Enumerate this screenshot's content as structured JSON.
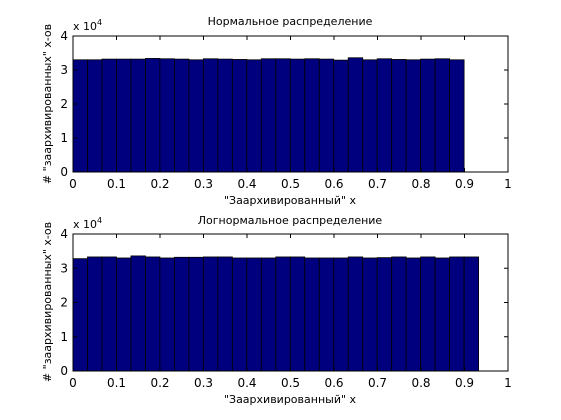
{
  "chart_data": [
    {
      "type": "bar",
      "title": "Нормальное распределение",
      "xlabel": "\"Заархивированный\" x",
      "ylabel": "# \"заархивированных\" x-ов",
      "y_exponent_label": "x 10",
      "y_exponent_power": "4",
      "xlim": [
        0,
        1
      ],
      "ylim": [
        0,
        4
      ],
      "xticks": [
        "0",
        "0.1",
        "0.2",
        "0.3",
        "0.4",
        "0.5",
        "0.6",
        "0.7",
        "0.8",
        "0.9",
        "1"
      ],
      "yticks": [
        "0",
        "1",
        "2",
        "3",
        "4"
      ],
      "bar_color": "#00007f",
      "bin_width": 0.0333,
      "values": [
        3.3,
        3.3,
        3.32,
        3.32,
        3.32,
        3.34,
        3.33,
        3.32,
        3.3,
        3.33,
        3.32,
        3.31,
        3.3,
        3.33,
        3.33,
        3.32,
        3.33,
        3.32,
        3.29,
        3.36,
        3.3,
        3.33,
        3.31,
        3.3,
        3.32,
        3.33,
        3.3
      ]
    },
    {
      "type": "bar",
      "title": "Логнормальное распределение",
      "xlabel": "\"Заархивированный\" x",
      "ylabel": "# \"заархивированных\" x-ов",
      "y_exponent_label": "x 10",
      "y_exponent_power": "4",
      "xlim": [
        0,
        1
      ],
      "ylim": [
        0,
        4
      ],
      "xticks": [
        "0",
        "0.1",
        "0.2",
        "0.3",
        "0.4",
        "0.5",
        "0.6",
        "0.7",
        "0.8",
        "0.9",
        "1"
      ],
      "yticks": [
        "0",
        "1",
        "2",
        "3",
        "4"
      ],
      "bar_color": "#00007f",
      "bin_width": 0.0333,
      "values": [
        3.28,
        3.33,
        3.33,
        3.3,
        3.36,
        3.33,
        3.3,
        3.32,
        3.32,
        3.33,
        3.33,
        3.3,
        3.3,
        3.3,
        3.33,
        3.33,
        3.3,
        3.3,
        3.3,
        3.33,
        3.3,
        3.31,
        3.33,
        3.3,
        3.33,
        3.3,
        3.33,
        3.33
      ]
    }
  ]
}
